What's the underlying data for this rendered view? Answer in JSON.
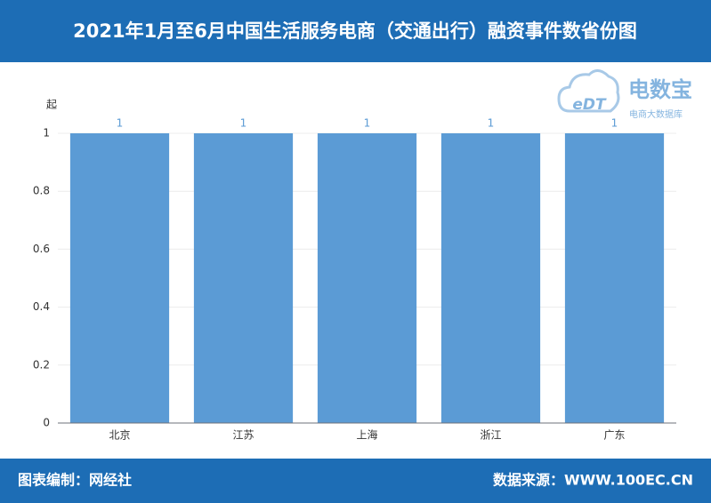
{
  "chart_data": {
    "type": "bar",
    "title": "2021年1月至6月中国生活服务电商（交通出行）融资事件数省份图",
    "y_unit": "起",
    "categories": [
      "北京",
      "江苏",
      "上海",
      "浙江",
      "广东"
    ],
    "values": [
      1,
      1,
      1,
      1,
      1
    ],
    "color": "#5b9bd5",
    "ylim": [
      0,
      1
    ],
    "yticks": [
      0,
      0.2,
      0.4,
      0.6,
      0.8,
      1
    ],
    "grid": true
  },
  "logo": {
    "mark": "eDT",
    "name": "电数宝",
    "tagline": "电商大数据库"
  },
  "footer": {
    "left": "图表编制：网经社",
    "right": "数据来源：WWW.100EC.CN"
  }
}
